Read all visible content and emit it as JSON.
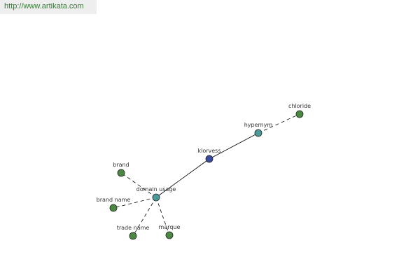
{
  "header": {
    "url": "http://www.artikata.com"
  },
  "nodes": [
    {
      "label": "klorvess"
    },
    {
      "label": "hypernym"
    },
    {
      "label": "chloride"
    },
    {
      "label": "domain usage"
    },
    {
      "label": "brand"
    },
    {
      "label": "brand name"
    },
    {
      "label": "trade name"
    },
    {
      "label": "marque"
    }
  ]
}
